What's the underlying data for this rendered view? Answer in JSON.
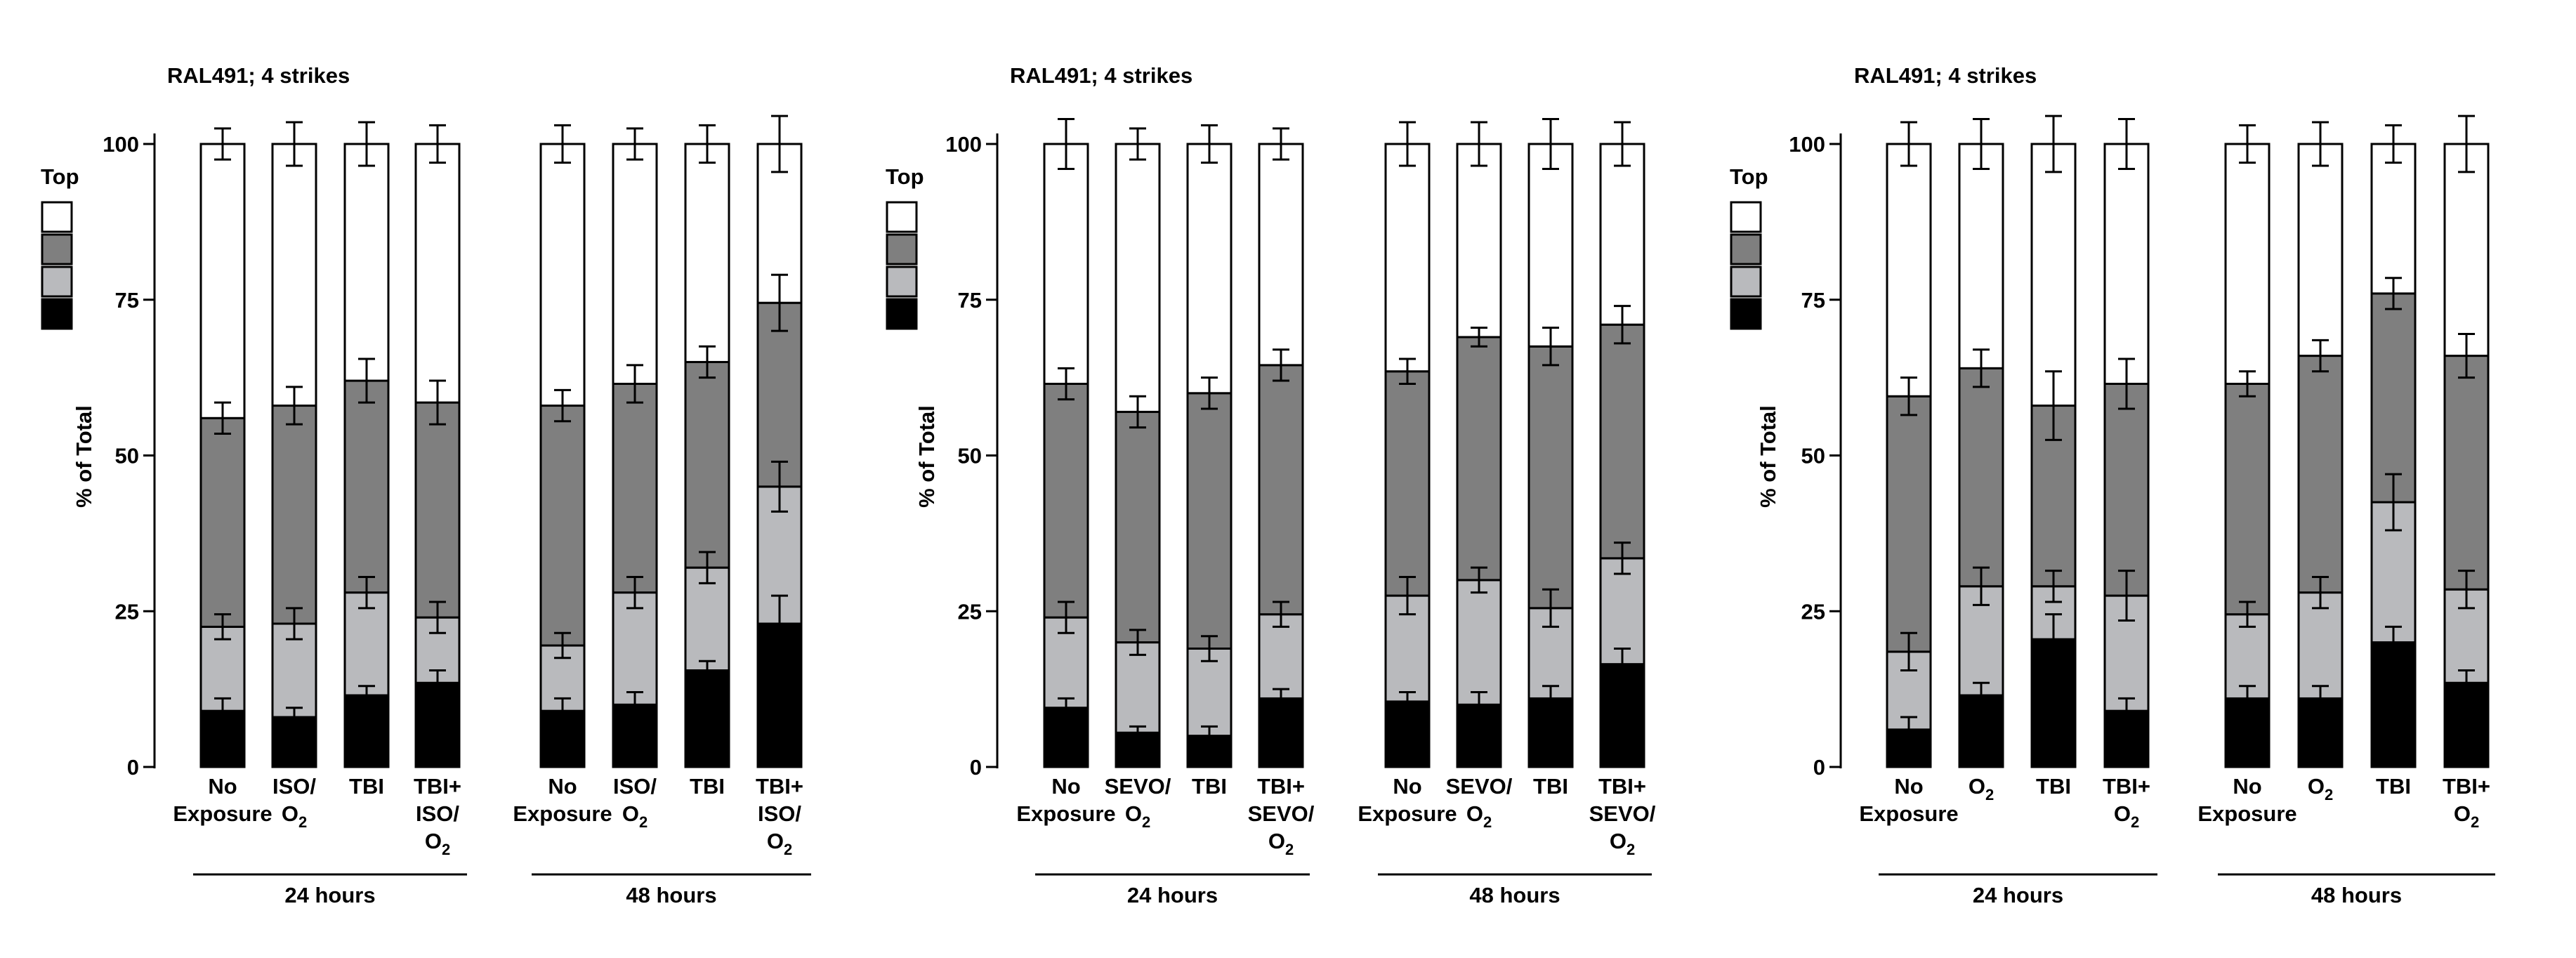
{
  "colors": {
    "top": "#ffffff",
    "second": "#7f7f7f",
    "third": "#b9babd",
    "bottom": "#000000",
    "outline": "#000000"
  },
  "legend": {
    "label": "Top"
  },
  "chart_data": [
    {
      "type": "bar",
      "stacked": true,
      "title": "RAL491; 4 strikes",
      "ylabel": "% of Total",
      "ylim": [
        0,
        100
      ],
      "yticks": [
        "0",
        "25",
        "50",
        "75",
        "100"
      ],
      "categories": [
        {
          "lines": [
            "No",
            "Exposure"
          ]
        },
        {
          "lines": [
            "ISO/",
            "O2"
          ]
        },
        {
          "lines": [
            "TBI"
          ]
        },
        {
          "lines": [
            "TBI+",
            "ISO/",
            "O2"
          ]
        },
        {
          "lines": [
            "No",
            "Exposure"
          ]
        },
        {
          "lines": [
            "ISO/",
            "O2"
          ]
        },
        {
          "lines": [
            "TBI"
          ]
        },
        {
          "lines": [
            "TBI+",
            "ISO/",
            "O2"
          ]
        }
      ],
      "groups": [
        {
          "label": "24 hours",
          "start": 0,
          "end": 3
        },
        {
          "label": "48 hours",
          "start": 4,
          "end": 7
        }
      ],
      "bottom": [
        9,
        8,
        11.5,
        13.5,
        9,
        10,
        15.5,
        23
      ],
      "bottom_err": [
        2,
        1.5,
        1.5,
        2,
        2,
        2,
        1.5,
        4.5
      ],
      "third_top": [
        22.5,
        23,
        28,
        24,
        19.5,
        28,
        32,
        45
      ],
      "third_err": [
        2,
        2.5,
        2.5,
        2.5,
        2,
        2.5,
        2.5,
        4
      ],
      "second_top": [
        56,
        58,
        62,
        58.5,
        58,
        61.5,
        65,
        74.5
      ],
      "second_err": [
        2.5,
        3,
        3.5,
        3.5,
        2.5,
        3,
        2.5,
        4.5
      ],
      "total_err": [
        2.5,
        3.5,
        3.5,
        3,
        3,
        2.5,
        3,
        4.5
      ]
    },
    {
      "type": "bar",
      "stacked": true,
      "title": "RAL491; 4 strikes",
      "ylabel": "% of Total",
      "ylim": [
        0,
        100
      ],
      "yticks": [
        "0",
        "25",
        "50",
        "75",
        "100"
      ],
      "categories": [
        {
          "lines": [
            "No",
            "Exposure"
          ]
        },
        {
          "lines": [
            "SEVO/",
            "O2"
          ]
        },
        {
          "lines": [
            "TBI"
          ]
        },
        {
          "lines": [
            "TBI+",
            "SEVO/",
            "O2"
          ]
        },
        {
          "lines": [
            "No",
            "Exposure"
          ]
        },
        {
          "lines": [
            "SEVO/",
            "O2"
          ]
        },
        {
          "lines": [
            "TBI"
          ]
        },
        {
          "lines": [
            "TBI+",
            "SEVO/",
            "O2"
          ]
        }
      ],
      "groups": [
        {
          "label": "24 hours",
          "start": 0,
          "end": 3
        },
        {
          "label": "48 hours",
          "start": 4,
          "end": 7
        }
      ],
      "bottom": [
        9.5,
        5.5,
        5,
        11,
        10.5,
        10,
        11,
        16.5
      ],
      "bottom_err": [
        1.5,
        1,
        1.5,
        1.5,
        1.5,
        2,
        2,
        2.5
      ],
      "third_top": [
        24,
        20,
        19,
        24.5,
        27.5,
        30,
        25.5,
        33.5
      ],
      "third_err": [
        2.5,
        2,
        2,
        2,
        3,
        2,
        3,
        2.5
      ],
      "second_top": [
        61.5,
        57,
        60,
        64.5,
        63.5,
        69,
        67.5,
        71
      ],
      "second_err": [
        2.5,
        2.5,
        2.5,
        2.5,
        2,
        1.5,
        3,
        3
      ],
      "total_err": [
        4,
        2.5,
        3,
        2.5,
        3.5,
        3.5,
        4,
        3.5
      ]
    },
    {
      "type": "bar",
      "stacked": true,
      "title": "RAL491; 4 strikes",
      "ylabel": "% of Total",
      "ylim": [
        0,
        100
      ],
      "yticks": [
        "0",
        "25",
        "50",
        "75",
        "100"
      ],
      "categories": [
        {
          "lines": [
            "No",
            "Exposure"
          ]
        },
        {
          "lines": [
            "O2"
          ]
        },
        {
          "lines": [
            "TBI"
          ]
        },
        {
          "lines": [
            "TBI+",
            "O2"
          ]
        },
        {
          "lines": [
            "No",
            "Exposure"
          ]
        },
        {
          "lines": [
            "O2"
          ]
        },
        {
          "lines": [
            "TBI"
          ]
        },
        {
          "lines": [
            "TBI+",
            "O2"
          ]
        }
      ],
      "groups": [
        {
          "label": "24 hours",
          "start": 0,
          "end": 3
        },
        {
          "label": "48 hours",
          "start": 4,
          "end": 7
        }
      ],
      "bottom": [
        6,
        11.5,
        20.5,
        9,
        11,
        11,
        20,
        13.5
      ],
      "bottom_err": [
        2,
        2,
        4,
        2,
        2,
        2,
        2.5,
        2
      ],
      "third_top": [
        18.5,
        29,
        29,
        27.5,
        24.5,
        28,
        42.5,
        28.5
      ],
      "third_err": [
        3,
        3,
        2.5,
        4,
        2,
        2.5,
        4.5,
        3
      ],
      "second_top": [
        59.5,
        64,
        58,
        61.5,
        61.5,
        66,
        76,
        66
      ],
      "second_err": [
        3,
        3,
        5.5,
        4,
        2,
        2.5,
        2.5,
        3.5
      ],
      "total_err": [
        3.5,
        4,
        4.5,
        4,
        3,
        3.5,
        3,
        4.5
      ]
    }
  ]
}
